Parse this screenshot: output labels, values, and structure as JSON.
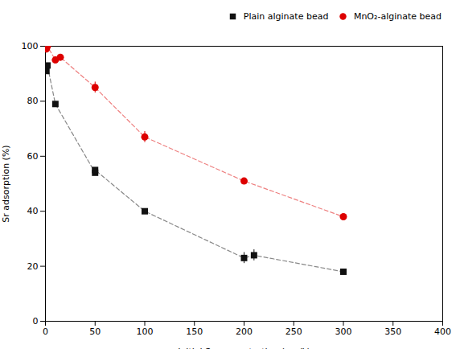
{
  "chart_data": {
    "type": "scatter",
    "xlabel": "Initial Sr concentration (mg/L)",
    "ylabel": "Sr adsorption (%)",
    "xlim": [
      0,
      400
    ],
    "ylim": [
      0,
      100
    ],
    "xticks": [
      0,
      50,
      100,
      150,
      200,
      250,
      300,
      350,
      400
    ],
    "yticks": [
      0,
      20,
      40,
      60,
      80,
      100
    ],
    "legend": "upper right",
    "series": [
      {
        "name": "Plain alginate bead",
        "color": "#111111",
        "marker": "square",
        "line_style": "dashed",
        "x": [
          1,
          2,
          10,
          50,
          50,
          100,
          200,
          210,
          300
        ],
        "values": [
          91,
          93,
          79,
          54,
          55,
          40,
          23,
          24,
          18
        ],
        "yerr": [
          0,
          0,
          0,
          0,
          0,
          0,
          2,
          2,
          0
        ]
      },
      {
        "name": "MnO₂-alginate bead",
        "color": "#dd0000",
        "marker": "circle",
        "line_style": "dashed",
        "x": [
          1,
          2,
          10,
          15,
          50,
          100,
          200,
          300
        ],
        "values": [
          99,
          100,
          95,
          96,
          85,
          67,
          51,
          38
        ],
        "yerr": [
          0,
          0,
          0,
          0,
          2,
          2,
          0,
          0
        ]
      }
    ]
  }
}
